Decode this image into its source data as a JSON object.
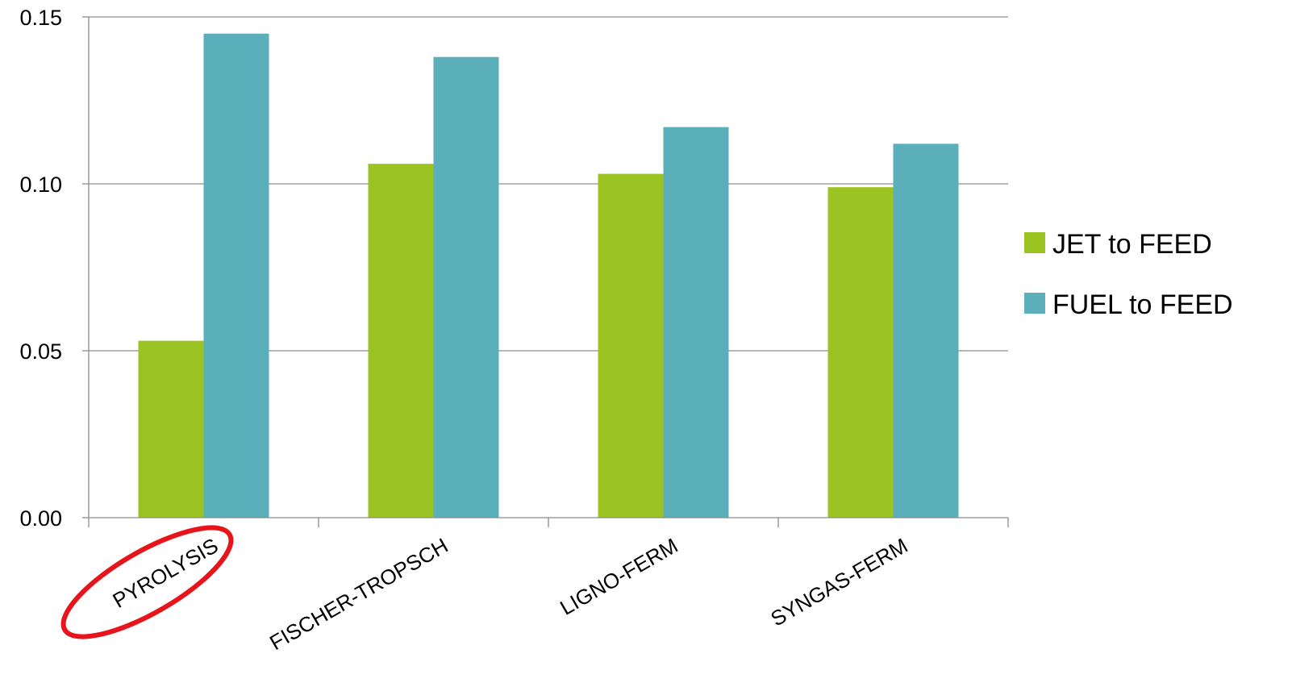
{
  "chart_data": {
    "type": "bar",
    "title": "",
    "xlabel": "",
    "ylabel": "",
    "categories": [
      "PYROLYSIS",
      "FISCHER-TROPSCH",
      "LIGNO-FERM",
      "SYNGAS-FERM"
    ],
    "series": [
      {
        "name": "JET to FEED",
        "color": "#9bc423",
        "values": [
          0.053,
          0.106,
          0.103,
          0.099
        ]
      },
      {
        "name": "FUEL to FEED",
        "color": "#5aafba",
        "values": [
          0.145,
          0.138,
          0.117,
          0.112
        ]
      }
    ],
    "ylim": [
      0,
      0.15
    ],
    "yticks": [
      "0.00",
      "0.05",
      "0.10",
      "0.15"
    ],
    "grid": true,
    "legend_position": "right",
    "highlight": {
      "category": "PYROLYSIS",
      "shape": "ellipse",
      "color": "#e8141b"
    }
  }
}
